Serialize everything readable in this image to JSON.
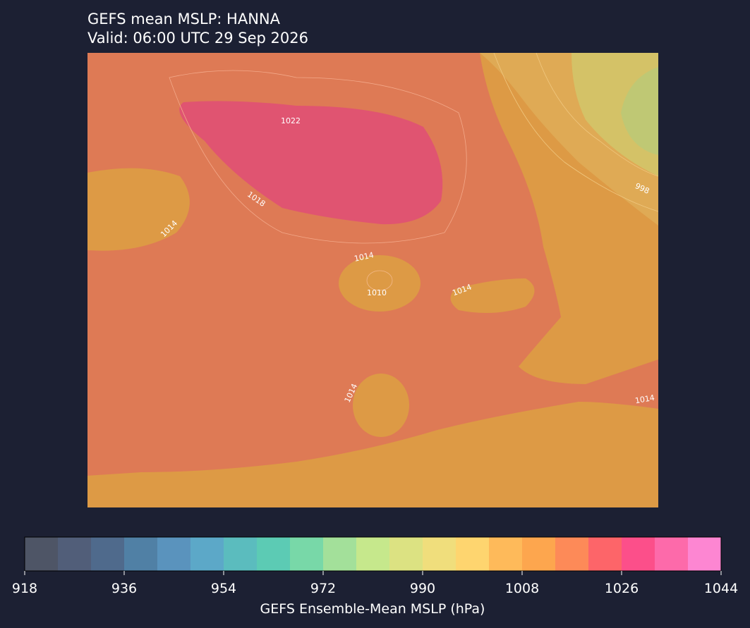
{
  "header": {
    "title": "GEFS mean MSLP: HANNA",
    "subtitle": "Valid: 06:00 UTC 29 Sep 2026"
  },
  "map": {
    "contour_labels": [
      1022,
      1018,
      1014,
      1014,
      1010,
      1014,
      1014,
      1014,
      998
    ]
  },
  "colorbar": {
    "label": "GEFS Ensemble-Mean MSLP (hPa)",
    "lim": [
      918,
      1044
    ],
    "ticks": [
      918,
      936,
      954,
      972,
      990,
      1008,
      1026,
      1044
    ],
    "colors": [
      "#4e5566",
      "#515e79",
      "#4f6a8c",
      "#5080a5",
      "#5a93bd",
      "#5ca8c8",
      "#5bbcbe",
      "#5ccbb4",
      "#78d8a8",
      "#a3e09a",
      "#c6e88c",
      "#dce282",
      "#f0de7c",
      "#fed56f",
      "#feba5a",
      "#fda64e",
      "#fd8a58",
      "#fd6569",
      "#fc4f8a",
      "#fd6aaa",
      "#fd86d2"
    ]
  }
}
